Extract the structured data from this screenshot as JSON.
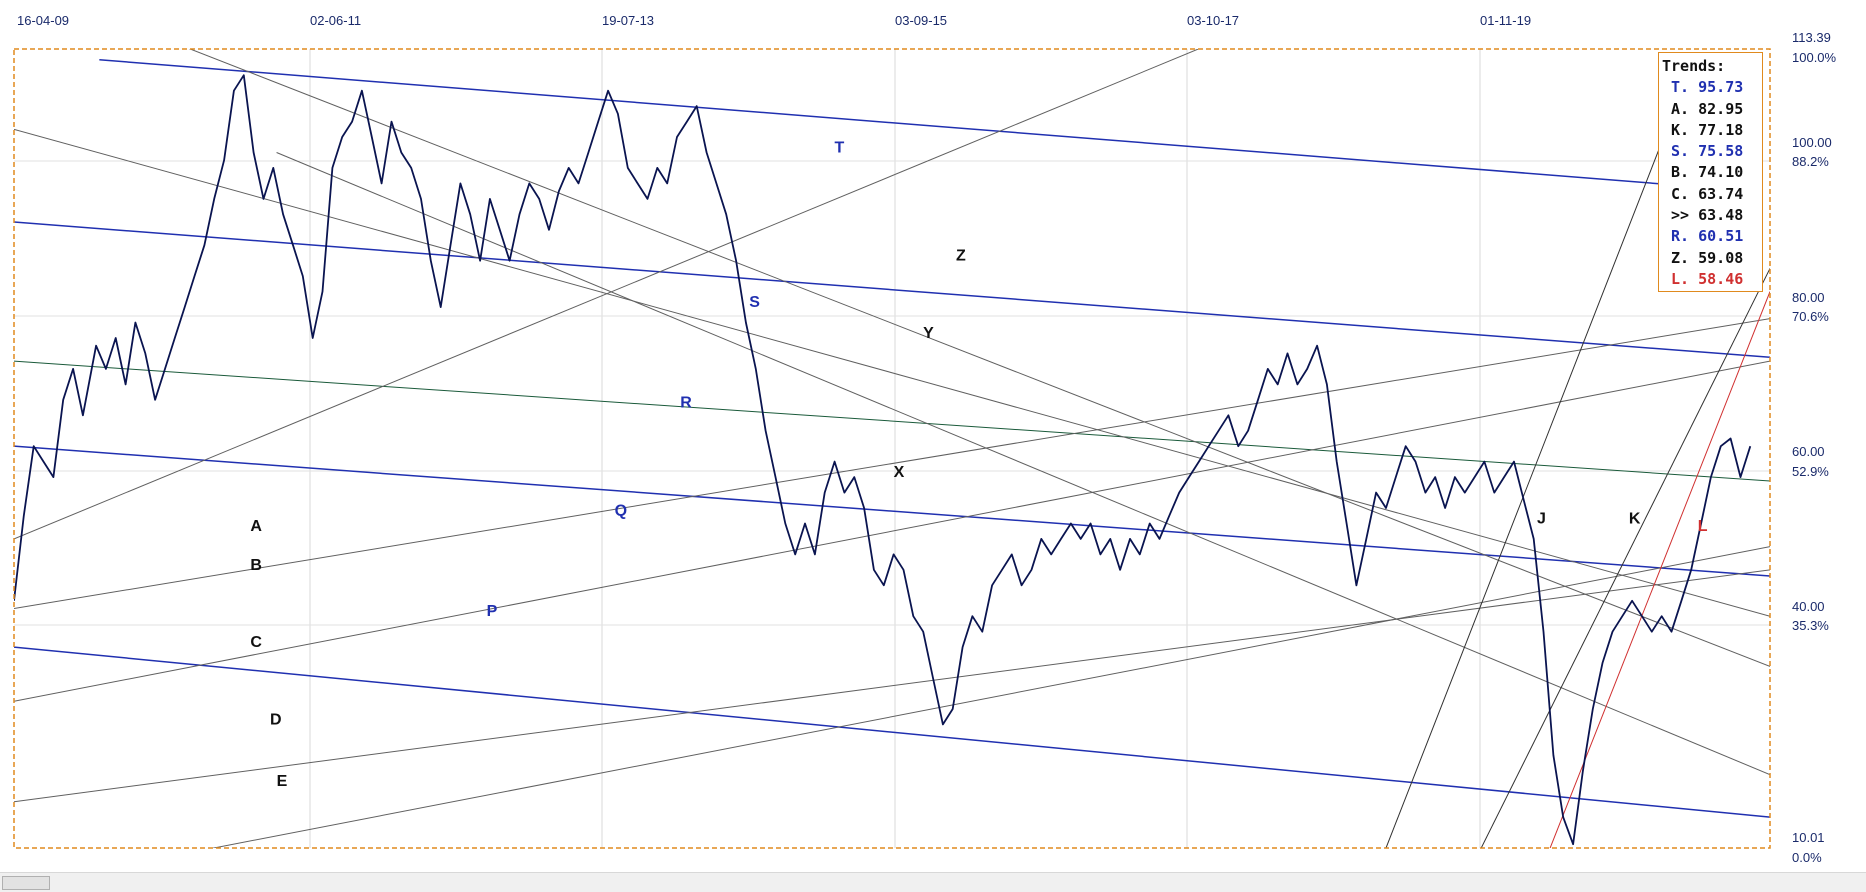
{
  "chart_data": {
    "type": "line",
    "x_ticks": [
      "16-04-09",
      "02-06-11",
      "19-07-13",
      "03-09-15",
      "03-10-17",
      "01-11-19"
    ],
    "y_price_ticks": [
      "113.39",
      "100.00",
      "80.00",
      "60.00",
      "40.00",
      "10.01"
    ],
    "y_pct_ticks": [
      "100.0%",
      "88.2%",
      "70.6%",
      "52.9%",
      "35.3%",
      "0.0%"
    ],
    "ylim": [
      10.01,
      113.39
    ],
    "grid": true,
    "price_series": [
      [
        0,
        42
      ],
      [
        0.3,
        53
      ],
      [
        0.6,
        62
      ],
      [
        0.9,
        60
      ],
      [
        1.2,
        58
      ],
      [
        1.5,
        68
      ],
      [
        1.8,
        72
      ],
      [
        2.1,
        66
      ],
      [
        2.5,
        75
      ],
      [
        2.8,
        72
      ],
      [
        3.1,
        76
      ],
      [
        3.4,
        70
      ],
      [
        3.7,
        78
      ],
      [
        4.0,
        74
      ],
      [
        4.3,
        68
      ],
      [
        4.6,
        72
      ],
      [
        4.9,
        76
      ],
      [
        5.2,
        80
      ],
      [
        5.5,
        84
      ],
      [
        5.8,
        88
      ],
      [
        6.1,
        94
      ],
      [
        6.4,
        99
      ],
      [
        6.7,
        108
      ],
      [
        7.0,
        110
      ],
      [
        7.3,
        100
      ],
      [
        7.6,
        94
      ],
      [
        7.9,
        98
      ],
      [
        8.2,
        92
      ],
      [
        8.5,
        88
      ],
      [
        8.8,
        84
      ],
      [
        9.1,
        76
      ],
      [
        9.4,
        82
      ],
      [
        9.7,
        98
      ],
      [
        10.0,
        102
      ],
      [
        10.3,
        104
      ],
      [
        10.6,
        108
      ],
      [
        10.9,
        102
      ],
      [
        11.2,
        96
      ],
      [
        11.5,
        104
      ],
      [
        11.8,
        100
      ],
      [
        12.1,
        98
      ],
      [
        12.4,
        94
      ],
      [
        12.7,
        86
      ],
      [
        13.0,
        80
      ],
      [
        13.3,
        88
      ],
      [
        13.6,
        96
      ],
      [
        13.9,
        92
      ],
      [
        14.2,
        86
      ],
      [
        14.5,
        94
      ],
      [
        14.8,
        90
      ],
      [
        15.1,
        86
      ],
      [
        15.4,
        92
      ],
      [
        15.7,
        96
      ],
      [
        16.0,
        94
      ],
      [
        16.3,
        90
      ],
      [
        16.6,
        95
      ],
      [
        16.9,
        98
      ],
      [
        17.2,
        96
      ],
      [
        17.5,
        100
      ],
      [
        17.8,
        104
      ],
      [
        18.1,
        108
      ],
      [
        18.4,
        105
      ],
      [
        18.7,
        98
      ],
      [
        19.0,
        96
      ],
      [
        19.3,
        94
      ],
      [
        19.6,
        98
      ],
      [
        19.9,
        96
      ],
      [
        20.2,
        102
      ],
      [
        20.5,
        104
      ],
      [
        20.8,
        106
      ],
      [
        21.1,
        100
      ],
      [
        21.4,
        96
      ],
      [
        21.7,
        92
      ],
      [
        22.0,
        86
      ],
      [
        22.3,
        78
      ],
      [
        22.6,
        72
      ],
      [
        22.9,
        64
      ],
      [
        23.2,
        58
      ],
      [
        23.5,
        52
      ],
      [
        23.8,
        48
      ],
      [
        24.1,
        52
      ],
      [
        24.4,
        48
      ],
      [
        24.7,
        56
      ],
      [
        25.0,
        60
      ],
      [
        25.3,
        56
      ],
      [
        25.6,
        58
      ],
      [
        25.9,
        54
      ],
      [
        26.2,
        46
      ],
      [
        26.5,
        44
      ],
      [
        26.8,
        48
      ],
      [
        27.1,
        46
      ],
      [
        27.4,
        40
      ],
      [
        27.7,
        38
      ],
      [
        28.0,
        32
      ],
      [
        28.3,
        26
      ],
      [
        28.6,
        28
      ],
      [
        28.9,
        36
      ],
      [
        29.2,
        40
      ],
      [
        29.5,
        38
      ],
      [
        29.8,
        44
      ],
      [
        30.1,
        46
      ],
      [
        30.4,
        48
      ],
      [
        30.7,
        44
      ],
      [
        31.0,
        46
      ],
      [
        31.3,
        50
      ],
      [
        31.6,
        48
      ],
      [
        31.9,
        50
      ],
      [
        32.2,
        52
      ],
      [
        32.5,
        50
      ],
      [
        32.8,
        52
      ],
      [
        33.1,
        48
      ],
      [
        33.4,
        50
      ],
      [
        33.7,
        46
      ],
      [
        34.0,
        50
      ],
      [
        34.3,
        48
      ],
      [
        34.6,
        52
      ],
      [
        34.9,
        50
      ],
      [
        35.2,
        53
      ],
      [
        35.5,
        56
      ],
      [
        35.8,
        58
      ],
      [
        36.1,
        60
      ],
      [
        36.4,
        62
      ],
      [
        36.7,
        64
      ],
      [
        37.0,
        66
      ],
      [
        37.3,
        62
      ],
      [
        37.6,
        64
      ],
      [
        37.9,
        68
      ],
      [
        38.2,
        72
      ],
      [
        38.5,
        70
      ],
      [
        38.8,
        74
      ],
      [
        39.1,
        70
      ],
      [
        39.4,
        72
      ],
      [
        39.7,
        75
      ],
      [
        40.0,
        70
      ],
      [
        40.3,
        60
      ],
      [
        40.6,
        52
      ],
      [
        40.9,
        44
      ],
      [
        41.2,
        50
      ],
      [
        41.5,
        56
      ],
      [
        41.8,
        54
      ],
      [
        42.1,
        58
      ],
      [
        42.4,
        62
      ],
      [
        42.7,
        60
      ],
      [
        43.0,
        56
      ],
      [
        43.3,
        58
      ],
      [
        43.6,
        54
      ],
      [
        43.9,
        58
      ],
      [
        44.2,
        56
      ],
      [
        44.5,
        58
      ],
      [
        44.8,
        60
      ],
      [
        45.1,
        56
      ],
      [
        45.4,
        58
      ],
      [
        45.7,
        60
      ],
      [
        46.0,
        55
      ],
      [
        46.3,
        50
      ],
      [
        46.6,
        38
      ],
      [
        46.9,
        22
      ],
      [
        47.2,
        14
      ],
      [
        47.5,
        10.5
      ],
      [
        47.8,
        20
      ],
      [
        48.1,
        28
      ],
      [
        48.4,
        34
      ],
      [
        48.7,
        38
      ],
      [
        49.0,
        40
      ],
      [
        49.3,
        42
      ],
      [
        49.6,
        40
      ],
      [
        49.9,
        38
      ],
      [
        50.2,
        40
      ],
      [
        50.5,
        38
      ],
      [
        50.8,
        42
      ],
      [
        51.1,
        46
      ],
      [
        51.4,
        52
      ],
      [
        51.7,
        58
      ],
      [
        52.0,
        62
      ],
      [
        52.3,
        63
      ],
      [
        52.6,
        58
      ],
      [
        52.9,
        62
      ]
    ],
    "trend_lines": [
      {
        "label": "T",
        "color": "#2030b0",
        "p1": [
          2.6,
          112
        ],
        "p2": [
          50.8,
          95.73
        ]
      },
      {
        "label": "S",
        "color": "#2030b0",
        "p1": [
          0,
          91
        ],
        "p2": [
          53.5,
          73.5
        ]
      },
      {
        "label": "R",
        "color": "#1a5a3a",
        "p1": [
          0,
          73
        ],
        "p2": [
          53.5,
          57.5
        ]
      },
      {
        "label": "Q",
        "color": "#2030b0",
        "p1": [
          0,
          62
        ],
        "p2": [
          53.5,
          45.2
        ]
      },
      {
        "label": "P",
        "color": "#2030b0",
        "p1": [
          0,
          36
        ],
        "p2": [
          53.5,
          14
        ]
      },
      {
        "label": "Z",
        "color": "#606060",
        "p1": [
          5,
          114
        ],
        "p2": [
          53.5,
          33.5
        ]
      },
      {
        "label": "Y",
        "color": "#606060",
        "p1": [
          0,
          103
        ],
        "p2": [
          53.5,
          40
        ]
      },
      {
        "label": "X",
        "color": "#606060",
        "p1": [
          8,
          100
        ],
        "p2": [
          53.5,
          19.5
        ]
      },
      {
        "label": "A",
        "color": "#606060",
        "p1": [
          0,
          50
        ],
        "p2": [
          37,
          115
        ]
      },
      {
        "label": "B",
        "color": "#606060",
        "p1": [
          0,
          41
        ],
        "p2": [
          53.5,
          78.5
        ]
      },
      {
        "label": "C",
        "color": "#606060",
        "p1": [
          0,
          29
        ],
        "p2": [
          53.5,
          73
        ]
      },
      {
        "label": "D",
        "color": "#606060",
        "p1": [
          0,
          16
        ],
        "p2": [
          53.5,
          46
        ]
      },
      {
        "label": "E",
        "color": "#606060",
        "p1": [
          0,
          5
        ],
        "p2": [
          53.5,
          49
        ]
      },
      {
        "label": "J",
        "color": "#303030",
        "p1": [
          41.8,
          10
        ],
        "p2": [
          51,
          110
        ]
      },
      {
        "label": "K",
        "color": "#303030",
        "p1": [
          44.7,
          10
        ],
        "p2": [
          53.5,
          85
        ]
      },
      {
        "label": "L",
        "color": "#d03030",
        "p1": [
          46.8,
          10
        ],
        "p2": [
          53.5,
          82
        ]
      }
    ],
    "line_labels": [
      {
        "text": "T",
        "x": 25,
        "y": 100,
        "color": "#2030b0"
      },
      {
        "text": "S",
        "x": 22.4,
        "y": 80,
        "color": "#2030b0"
      },
      {
        "text": "R",
        "x": 20.3,
        "y": 67,
        "color": "#2030b0"
      },
      {
        "text": "Q",
        "x": 18.3,
        "y": 53,
        "color": "#2030b0"
      },
      {
        "text": "P",
        "x": 14.4,
        "y": 40,
        "color": "#2030b0"
      },
      {
        "text": "Z",
        "x": 28.7,
        "y": 86,
        "color": "#111111"
      },
      {
        "text": "Y",
        "x": 27.7,
        "y": 76,
        "color": "#111111"
      },
      {
        "text": "X",
        "x": 26.8,
        "y": 58,
        "color": "#111111"
      },
      {
        "text": "A",
        "x": 7.2,
        "y": 51,
        "color": "#111111"
      },
      {
        "text": "B",
        "x": 7.2,
        "y": 46,
        "color": "#111111"
      },
      {
        "text": "C",
        "x": 7.2,
        "y": 36,
        "color": "#111111"
      },
      {
        "text": "D",
        "x": 7.8,
        "y": 26,
        "color": "#111111"
      },
      {
        "text": "E",
        "x": 8.0,
        "y": 18,
        "color": "#111111"
      },
      {
        "text": "J",
        "x": 46.4,
        "y": 52,
        "color": "#111111"
      },
      {
        "text": "K",
        "x": 49.2,
        "y": 52,
        "color": "#111111"
      },
      {
        "text": "L",
        "x": 51.3,
        "y": 51,
        "color": "#d03030"
      }
    ]
  },
  "legend": {
    "title": "Trends:",
    "items": [
      {
        "key": "T.",
        "value": "95.73",
        "color": "#2030b0"
      },
      {
        "key": "A.",
        "value": "82.95",
        "color": "#111111"
      },
      {
        "key": "K.",
        "value": "77.18",
        "color": "#111111"
      },
      {
        "key": "S.",
        "value": "75.58",
        "color": "#2030b0"
      },
      {
        "key": "B.",
        "value": "74.10",
        "color": "#111111"
      },
      {
        "key": "C.",
        "value": "63.74",
        "color": "#111111"
      },
      {
        "key": ">>",
        "value": "63.48",
        "color": "#111111"
      },
      {
        "key": "R.",
        "value": "60.51",
        "color": "#2030b0"
      },
      {
        "key": "Z.",
        "value": "59.08",
        "color": "#111111"
      },
      {
        "key": "L.",
        "value": "58.46",
        "color": "#d03030"
      }
    ]
  },
  "colors": {
    "price": "#0a1450",
    "frame": "#e08a1e",
    "grid": "#d8d8d8",
    "axis_text": "#1a2a6a"
  }
}
